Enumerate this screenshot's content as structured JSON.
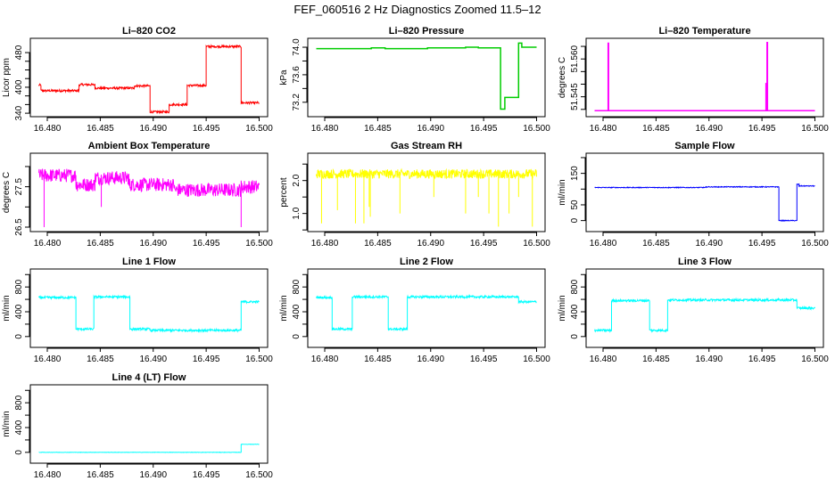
{
  "title": "FEF_060516  2 Hz Diagnostics Zoomed 11.5–12",
  "chart_data": [
    {
      "type": "line",
      "title": "Li–820 CO2",
      "ylabel": "Licor ppm",
      "color": "#ff0000",
      "xlim": [
        16.4784,
        16.5008
      ],
      "xticks": [
        16.48,
        16.485,
        16.49,
        16.495,
        16.5
      ],
      "xtick_labels": [
        "16.480",
        "16.485",
        "16.490",
        "16.495",
        "16.500"
      ],
      "ylim": [
        332,
        513
      ],
      "yticks": [
        340,
        360,
        380,
        400,
        420,
        440,
        460,
        480
      ],
      "ytick_labels": {
        "340": "340",
        "400": "400",
        "480": "480"
      },
      "steps": [
        [
          16.4792,
          405
        ],
        [
          16.4794,
          392
        ],
        [
          16.483,
          406
        ],
        [
          16.4845,
          398
        ],
        [
          16.4882,
          403
        ],
        [
          16.4897,
          343
        ],
        [
          16.4915,
          360
        ],
        [
          16.4932,
          404
        ],
        [
          16.495,
          494
        ],
        [
          16.4983,
          364
        ],
        [
          16.5,
          364
        ]
      ],
      "noise": 2.5,
      "spikes": []
    },
    {
      "type": "line",
      "title": "Li–820 Pressure",
      "ylabel": "kPa",
      "color": "#00cc00",
      "xlim": [
        16.4784,
        16.5008
      ],
      "xticks": [
        16.48,
        16.485,
        16.49,
        16.495,
        16.5
      ],
      "xtick_labels": [
        "16.480",
        "16.485",
        "16.490",
        "16.495",
        "16.500"
      ],
      "ylim": [
        72.99,
        74.13
      ],
      "yticks": [
        73.2,
        73.4,
        73.6,
        73.8,
        74.0
      ],
      "ytick_labels": {
        "73.2": "73.2",
        "73.6": "73.6",
        "74": "74.0"
      },
      "steps": [
        [
          16.4792,
          73.98
        ],
        [
          16.4844,
          73.99
        ],
        [
          16.4857,
          73.98
        ],
        [
          16.4897,
          73.99
        ],
        [
          16.4933,
          74.0
        ],
        [
          16.4945,
          73.99
        ],
        [
          16.4966,
          73.1
        ],
        [
          16.497,
          73.27
        ],
        [
          16.4983,
          74.06
        ],
        [
          16.4986,
          74.0
        ],
        [
          16.5,
          73.98
        ]
      ],
      "noise": 0.0,
      "spikes": []
    },
    {
      "type": "line",
      "title": "Li–820 Temperature",
      "ylabel": "degrees C",
      "color": "#ff00ff",
      "xlim": [
        16.4784,
        16.5008
      ],
      "xticks": [
        16.48,
        16.485,
        16.49,
        16.495,
        16.5
      ],
      "xtick_labels": [
        "16.480",
        "16.485",
        "16.490",
        "16.495",
        "16.500"
      ],
      "ylim": [
        51.5371,
        51.5682
      ],
      "yticks": [
        51.54,
        51.545,
        51.55,
        51.555,
        51.56,
        51.565
      ],
      "ytick_labels": {
        "51.545": "51.545",
        "51.56": "51.560"
      },
      "steps": [
        [
          16.4792,
          51.5395
        ],
        [
          16.5,
          51.5395
        ]
      ],
      "noise": 0.0,
      "spikes": [
        [
          16.4805,
          51.5665
        ],
        [
          16.4954,
          51.5505
        ],
        [
          16.4955,
          51.5668
        ]
      ]
    },
    {
      "type": "line",
      "title": "Ambient Box Temperature",
      "ylabel": "degrees C",
      "color": "#ff00ff",
      "xlim": [
        16.4784,
        16.5008
      ],
      "xticks": [
        16.48,
        16.485,
        16.49,
        16.495,
        16.5
      ],
      "xtick_labels": [
        "16.480",
        "16.485",
        "16.490",
        "16.495",
        "16.500"
      ],
      "ylim": [
        26.39,
        28.33
      ],
      "yticks": [
        26.5,
        27.0,
        27.5,
        28.0
      ],
      "ytick_labels": {
        "26.5": "26.5",
        "27.5": "27.5"
      },
      "steps": [
        [
          16.4792,
          27.78
        ],
        [
          16.4827,
          27.55
        ],
        [
          16.4845,
          27.72
        ],
        [
          16.4877,
          27.55
        ],
        [
          16.492,
          27.42
        ],
        [
          16.4983,
          27.5
        ],
        [
          16.5,
          27.5
        ]
      ],
      "noise": 0.17,
      "spikes": [
        [
          16.4797,
          26.5
        ],
        [
          16.4851,
          27.0
        ],
        [
          16.4983,
          26.5
        ]
      ]
    },
    {
      "type": "line",
      "title": "Gas Stream RH",
      "ylabel": "percent",
      "color": "#ffff00",
      "xlim": [
        16.4784,
        16.5008
      ],
      "xticks": [
        16.48,
        16.485,
        16.49,
        16.495,
        16.5
      ],
      "xtick_labels": [
        "16.480",
        "16.485",
        "16.490",
        "16.495",
        "16.500"
      ],
      "ylim": [
        0.45,
        2.83
      ],
      "yticks": [
        0.5,
        1.0,
        1.5,
        2.0,
        2.5
      ],
      "ytick_labels": {
        "1": "1.0",
        "2": "2.0"
      },
      "steps": [
        [
          16.4792,
          2.2
        ],
        [
          16.5,
          2.2
        ]
      ],
      "noise": 0.14,
      "spikes": [
        [
          16.4797,
          0.7
        ],
        [
          16.4812,
          1.1
        ],
        [
          16.4829,
          0.7
        ],
        [
          16.4837,
          0.7
        ],
        [
          16.4842,
          1.2
        ],
        [
          16.4843,
          0.9
        ],
        [
          16.4871,
          1.0
        ],
        [
          16.4903,
          1.5
        ],
        [
          16.4933,
          1.0
        ],
        [
          16.4945,
          1.5
        ],
        [
          16.4955,
          1.0
        ],
        [
          16.4964,
          0.6
        ],
        [
          16.4974,
          1.0
        ],
        [
          16.4983,
          1.5
        ],
        [
          16.4996,
          0.6
        ]
      ]
    },
    {
      "type": "line",
      "title": "Sample Flow",
      "ylabel": "ml/min",
      "color": "#0000ff",
      "xlim": [
        16.4784,
        16.5008
      ],
      "xticks": [
        16.48,
        16.485,
        16.49,
        16.495,
        16.5
      ],
      "xtick_labels": [
        "16.480",
        "16.485",
        "16.490",
        "16.495",
        "16.500"
      ],
      "ylim": [
        -35,
        214
      ],
      "yticks": [
        0,
        50,
        100,
        150,
        200
      ],
      "ytick_labels": {
        "0": "0",
        "50": "50",
        "150": "150"
      },
      "steps": [
        [
          16.4792,
          105
        ],
        [
          16.4897,
          107
        ],
        [
          16.4966,
          0
        ],
        [
          16.4983,
          115
        ],
        [
          16.4985,
          110
        ],
        [
          16.5,
          110
        ]
      ],
      "noise": 1.2,
      "spikes": []
    },
    {
      "type": "line",
      "title": "Line 1 Flow",
      "ylabel": "ml/min",
      "color": "#00ffff",
      "xlim": [
        16.4784,
        16.5008
      ],
      "xticks": [
        16.48,
        16.485,
        16.49,
        16.495,
        16.5
      ],
      "xtick_labels": [
        "16.480",
        "16.485",
        "16.490",
        "16.495",
        "16.500"
      ],
      "ylim": [
        -175,
        1090
      ],
      "yticks": [
        0,
        200,
        400,
        600,
        800,
        1000
      ],
      "ytick_labels": {
        "0": "0",
        "400": "400",
        "800": "800"
      },
      "steps": [
        [
          16.4792,
          630
        ],
        [
          16.4827,
          120
        ],
        [
          16.4844,
          640
        ],
        [
          16.4878,
          120
        ],
        [
          16.4897,
          100
        ],
        [
          16.4983,
          560
        ],
        [
          16.5,
          560
        ]
      ],
      "noise": 18,
      "spikes": []
    },
    {
      "type": "line",
      "title": "Line 2 Flow",
      "ylabel": "ml/min",
      "color": "#00ffff",
      "xlim": [
        16.4784,
        16.5008
      ],
      "xticks": [
        16.48,
        16.485,
        16.49,
        16.495,
        16.5
      ],
      "xtick_labels": [
        "16.480",
        "16.485",
        "16.490",
        "16.495",
        "16.500"
      ],
      "ylim": [
        -175,
        1090
      ],
      "yticks": [
        0,
        200,
        400,
        600,
        800,
        1000
      ],
      "ytick_labels": {
        "0": "0",
        "400": "400",
        "800": "800"
      },
      "steps": [
        [
          16.4792,
          630
        ],
        [
          16.4807,
          120
        ],
        [
          16.4826,
          640
        ],
        [
          16.486,
          120
        ],
        [
          16.4878,
          640
        ],
        [
          16.4983,
          560
        ],
        [
          16.5,
          560
        ]
      ],
      "noise": 18,
      "spikes": []
    },
    {
      "type": "line",
      "title": "Line 3 Flow",
      "ylabel": "ml/min",
      "color": "#00ffff",
      "xlim": [
        16.4784,
        16.5008
      ],
      "xticks": [
        16.48,
        16.485,
        16.49,
        16.495,
        16.5
      ],
      "xtick_labels": [
        "16.480",
        "16.485",
        "16.490",
        "16.495",
        "16.500"
      ],
      "ylim": [
        -175,
        1090
      ],
      "yticks": [
        0,
        200,
        400,
        600,
        800,
        1000
      ],
      "ytick_labels": {
        "0": "0",
        "400": "400",
        "800": "800"
      },
      "steps": [
        [
          16.4792,
          100
        ],
        [
          16.4808,
          580
        ],
        [
          16.4844,
          100
        ],
        [
          16.4861,
          590
        ],
        [
          16.4983,
          460
        ],
        [
          16.5,
          460
        ]
      ],
      "noise": 18,
      "spikes": []
    },
    {
      "type": "line",
      "title": "Line 4 (LT) Flow",
      "ylabel": "ml/min",
      "color": "#00ffff",
      "xlim": [
        16.4784,
        16.5008
      ],
      "xticks": [
        16.48,
        16.485,
        16.49,
        16.495,
        16.5
      ],
      "xtick_labels": [
        "16.480",
        "16.485",
        "16.490",
        "16.495",
        "16.500"
      ],
      "ylim": [
        -175,
        1090
      ],
      "yticks": [
        0,
        200,
        400,
        600,
        800,
        1000
      ],
      "ytick_labels": {
        "0": "0",
        "400": "400",
        "800": "800"
      },
      "steps": [
        [
          16.4792,
          0
        ],
        [
          16.4983,
          130
        ],
        [
          16.5,
          130
        ]
      ],
      "noise": 3,
      "spikes": []
    }
  ]
}
